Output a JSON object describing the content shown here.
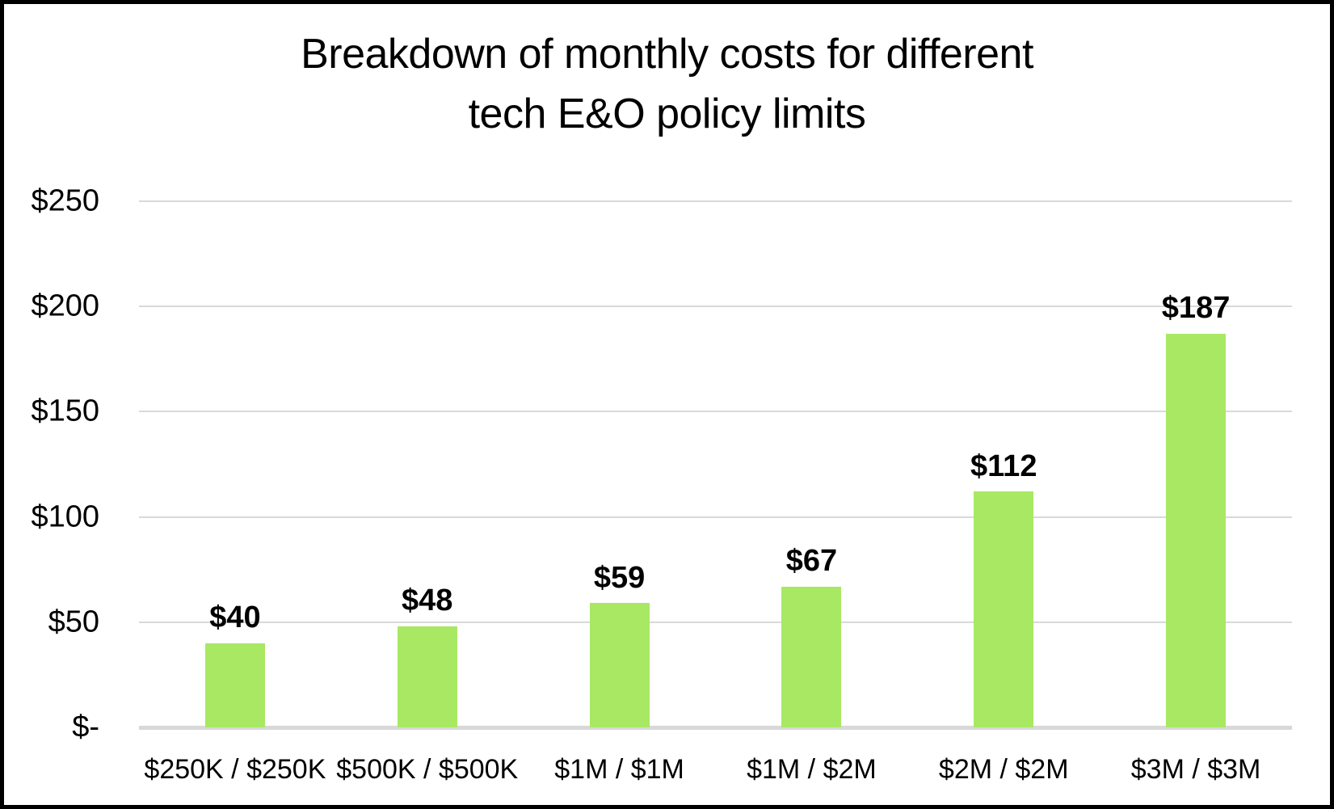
{
  "frame": {
    "background_color": "#FFFFFF",
    "border_color": "#000000"
  },
  "chart_data": {
    "type": "bar",
    "title": "Breakdown of monthly costs for different tech E&O policy limits",
    "title_lines": [
      "Breakdown of monthly costs for different",
      "tech E&O policy limits"
    ],
    "categories": [
      "$250K / $250K",
      "$500K / $500K",
      "$1M / $1M",
      "$1M / $2M",
      "$2M / $2M",
      "$3M / $3M"
    ],
    "values": [
      40,
      48,
      59,
      67,
      112,
      187
    ],
    "data_labels": [
      "$40",
      "$48",
      "$59",
      "$67",
      "$112",
      "$187"
    ],
    "y_ticks": [
      {
        "label": "$250",
        "value": 250
      },
      {
        "label": "$200",
        "value": 200
      },
      {
        "label": "$150",
        "value": 150
      },
      {
        "label": "$100",
        "value": 100
      },
      {
        "label": "$50",
        "value": 50
      },
      {
        "label": "$-",
        "value": 0
      }
    ],
    "ylim": [
      0,
      250
    ],
    "xlabel": "",
    "ylabel": "",
    "grid": true,
    "legend": false,
    "bar_color": "#A9E863",
    "gridline_color": "#D9D9D9",
    "axis_line_color": "#D8D8D8",
    "text_color": "#000000"
  }
}
